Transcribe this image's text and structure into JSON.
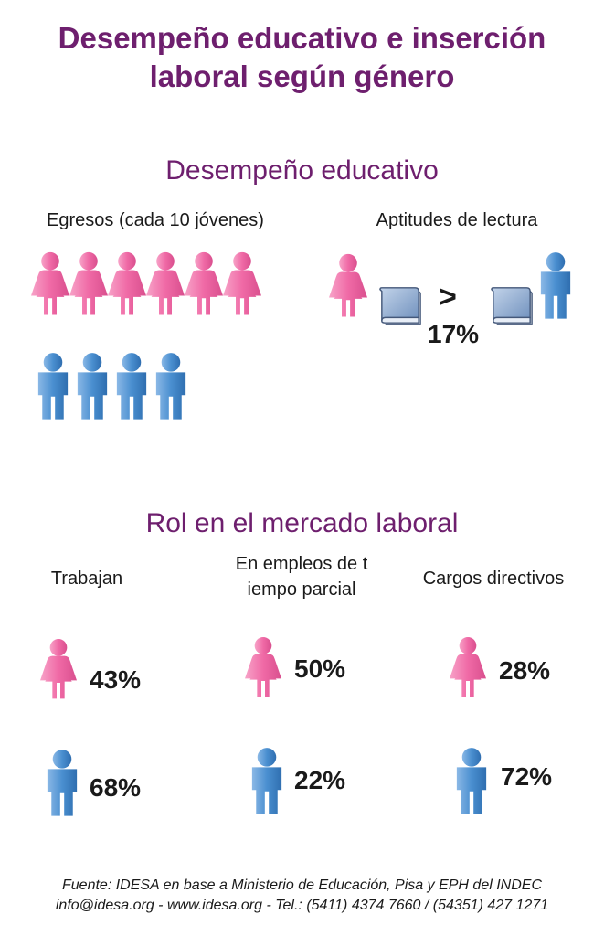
{
  "title": {
    "line1": "Desempeño educativo e inserción",
    "line2": "laboral según género"
  },
  "education": {
    "heading": "Desempeño educativo",
    "graduates": {
      "label": "Egresos (cada 10 jóvenes)",
      "women": 6,
      "men": 4
    },
    "reading": {
      "label": "Aptitudes de lectura",
      "comparator": ">",
      "value": "17%"
    }
  },
  "labor": {
    "heading": "Rol en el mercado laboral",
    "columns": [
      {
        "label_line1": "Trabajan",
        "label_line2": "",
        "women": "43%",
        "men": "68%"
      },
      {
        "label_line1": "En empleos de t",
        "label_line2": "iempo parcial",
        "women": "50%",
        "men": "22%"
      },
      {
        "label_line1": "Cargos directivos",
        "label_line2": "",
        "women": "28%",
        "men": "72%"
      }
    ]
  },
  "footer": {
    "line1": "Fuente: IDESA en base a Ministerio de Educación, Pisa y EPH del INDEC",
    "line2": "info@idesa.org - www.idesa.org - Tel.: (5411) 4374 7660 / (54351) 427 1271"
  },
  "colors": {
    "title": "#6e1f6e",
    "female": "#f06aa6",
    "male": "#4a8fd0",
    "book": "#7d9fc9"
  },
  "icons": {
    "female": "woman-icon",
    "male": "man-icon",
    "book": "book-icon"
  }
}
